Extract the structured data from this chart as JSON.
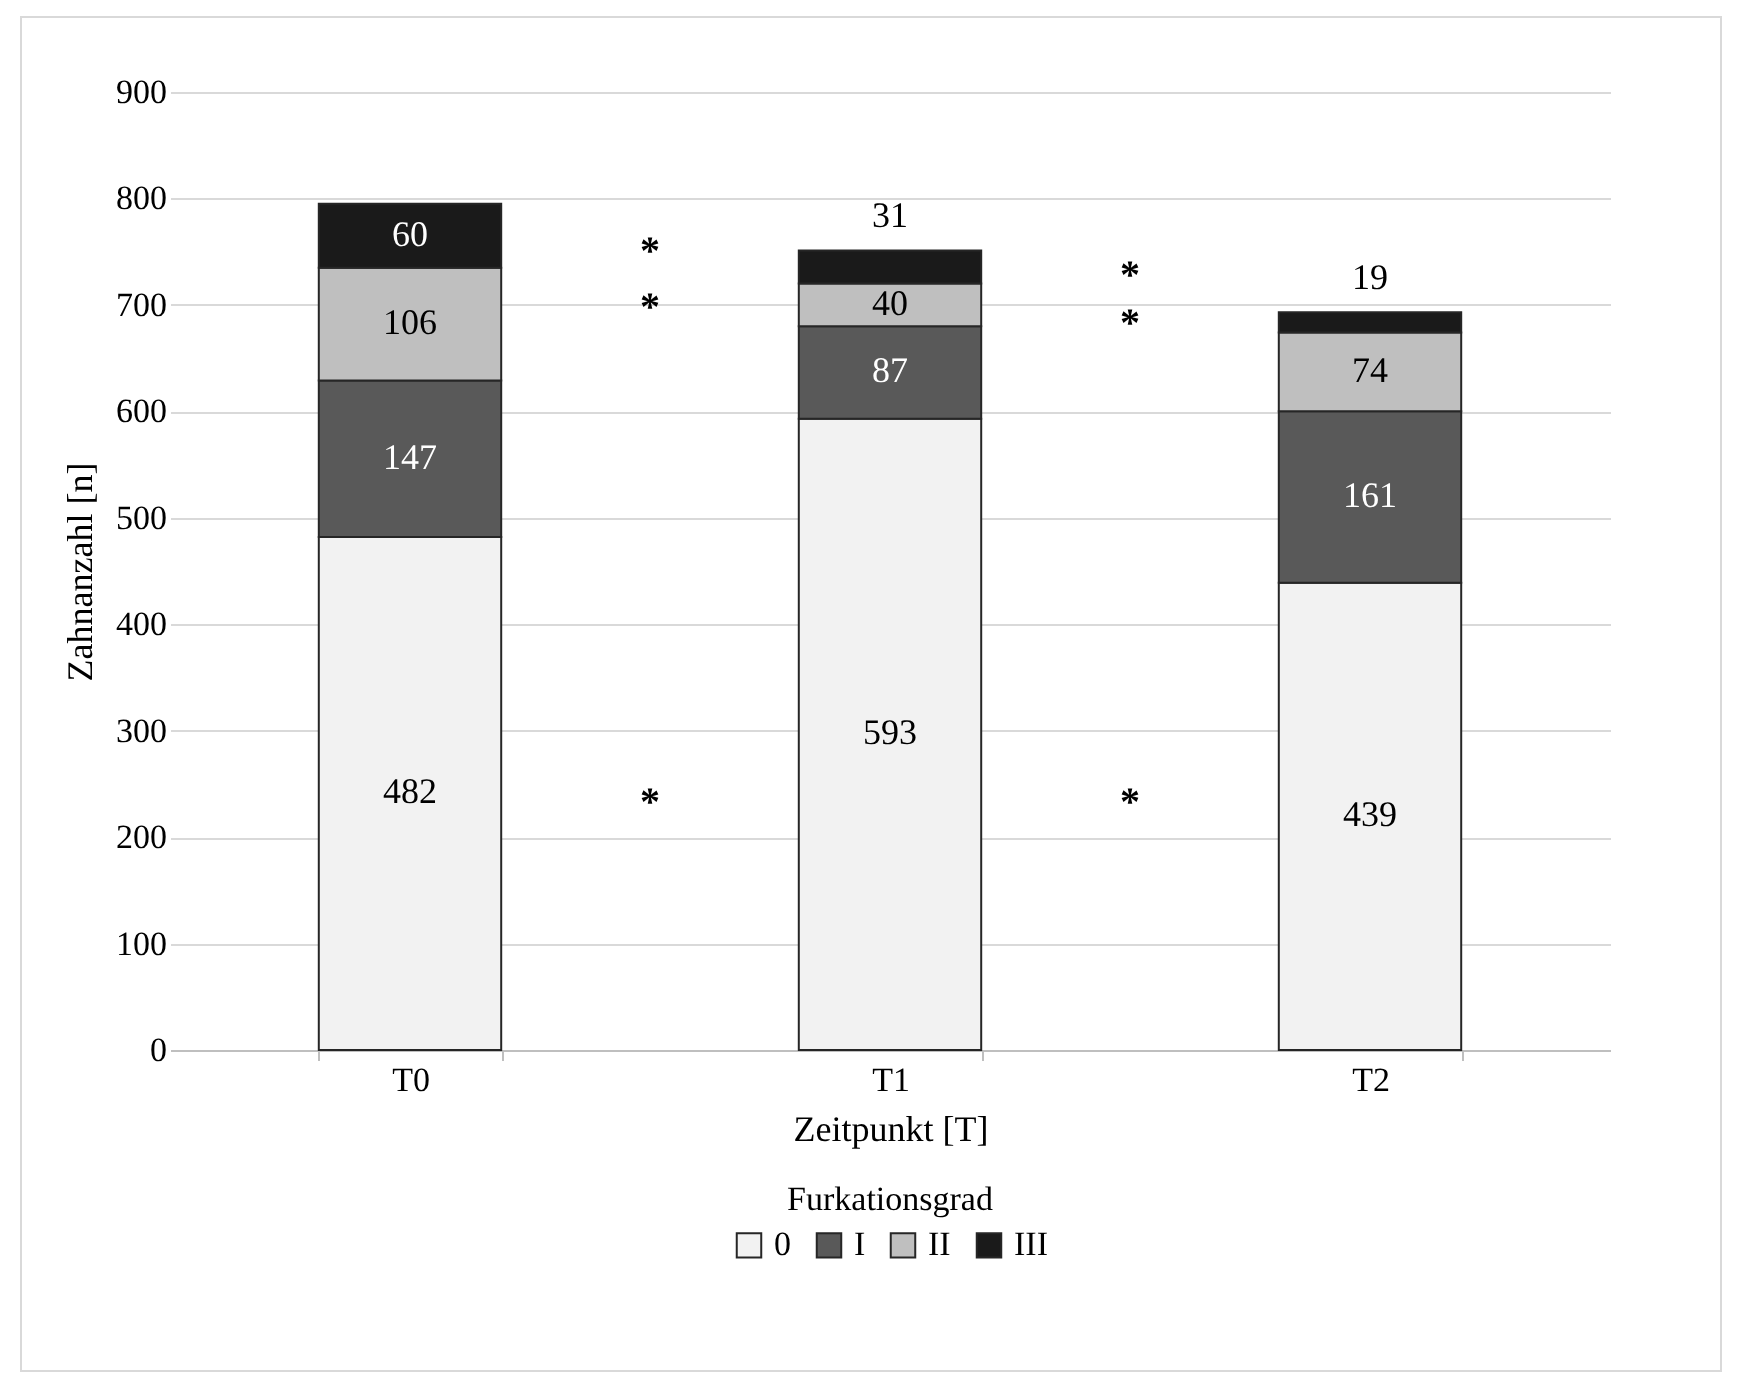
{
  "chart_data": {
    "type": "bar",
    "stacked": true,
    "xlabel": "Zeitpunkt [T]",
    "ylabel": "Zahnanzahl [n]",
    "legend_title": "Furkationsgrad",
    "legend": "bottom",
    "grid": "y",
    "data_labels": true,
    "categories": [
      "T0",
      "T1",
      "T2"
    ],
    "series": [
      {
        "name": "0",
        "color": "#f2f2f2",
        "values": [
          482,
          593,
          439
        ]
      },
      {
        "name": "I",
        "color": "#595959",
        "values": [
          147,
          87,
          161
        ]
      },
      {
        "name": "II",
        "color": "#bfbfbf",
        "values": [
          106,
          40,
          74
        ]
      },
      {
        "name": "III",
        "color": "#1a1a1a",
        "values": [
          60,
          31,
          19
        ]
      }
    ],
    "ylim": [
      0,
      900
    ],
    "yticks": [
      0,
      100,
      200,
      300,
      400,
      500,
      600,
      700,
      800,
      900
    ],
    "annotations": [
      "*",
      "*",
      "*",
      "*",
      "*",
      "*"
    ]
  }
}
